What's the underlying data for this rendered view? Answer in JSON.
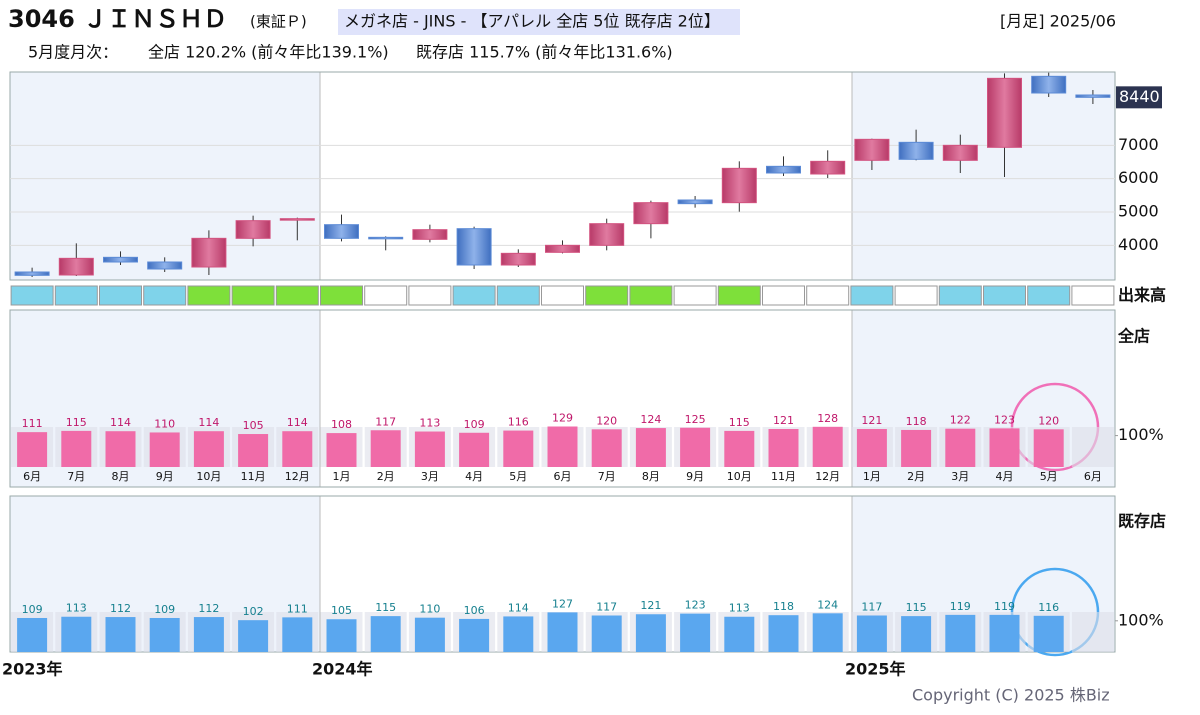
{
  "header": {
    "code_name": "3046 ＪＩＮＳＨＤ",
    "market": "(東証Ｐ)",
    "industry": "メガネ店 - JINS - 【アパレル 全店 5位 既存店 2位】",
    "period": "[月足] 2025/06",
    "summary_label": "5月度月次：",
    "all_store": "全店 120.2% (前々年比139.1%)",
    "existing_store": "既存店 115.7% (前々年比131.6%)",
    "copyright": "Copyright (C) 2025 株Biz"
  },
  "chart_data": [
    {
      "type": "candlestick",
      "open": [
        3200,
        3110,
        3640,
        3500,
        3350,
        4210,
        4770,
        4620,
        4240,
        4180,
        4500,
        3410,
        3790,
        4000,
        4650,
        5360,
        5280,
        6370,
        6140,
        6550,
        7090,
        6550,
        6940,
        9070,
        8510
      ],
      "high": [
        3330,
        4060,
        3820,
        3640,
        4450,
        4890,
        4830,
        4920,
        4270,
        4620,
        4560,
        3880,
        4150,
        4800,
        5340,
        5480,
        6520,
        6670,
        6850,
        7200,
        7470,
        7320,
        9160,
        9180,
        8660
      ],
      "low": [
        3050,
        3080,
        3410,
        3200,
        3110,
        3970,
        4150,
        4120,
        3850,
        4090,
        3290,
        3350,
        3760,
        3850,
        4210,
        5130,
        5010,
        6080,
        6020,
        6260,
        6550,
        6170,
        6050,
        8450,
        8240
      ],
      "close": [
        3100,
        3610,
        3500,
        3290,
        4210,
        4740,
        4800,
        4210,
        4210,
        4470,
        3410,
        3760,
        4000,
        4650,
        5280,
        5250,
        6310,
        6170,
        6520,
        7180,
        6580,
        7000,
        9010,
        8570,
        8440
      ],
      "up_color": "#d2527f",
      "down_color": "#5b8ad6",
      "ylim": [
        2960,
        9200
      ],
      "yticks": [
        4000,
        5000,
        6000,
        7000
      ],
      "current_price": 8440,
      "volume_label": "出来高",
      "volume_box_colors": [
        "#7fd3ea",
        "#7fd3ea",
        "#7fd3ea",
        "#7fd3ea",
        "#7ee03a",
        "#7ee03a",
        "#7ee03a",
        "#7ee03a",
        "#ffffff",
        "#ffffff",
        "#7fd3ea",
        "#7fd3ea",
        "#ffffff",
        "#7ee03a",
        "#7ee03a",
        "#ffffff",
        "#7ee03a",
        "#ffffff",
        "#ffffff",
        "#7fd3ea",
        "#ffffff",
        "#7fd3ea",
        "#7fd3ea",
        "#7fd3ea",
        "#ffffff"
      ]
    },
    {
      "type": "bar",
      "title": "全店",
      "categories": [
        "6月",
        "7月",
        "8月",
        "9月",
        "10月",
        "11月",
        "12月",
        "1月",
        "2月",
        "3月",
        "4月",
        "5月",
        "6月",
        "7月",
        "8月",
        "9月",
        "10月",
        "11月",
        "12月",
        "1月",
        "2月",
        "3月",
        "4月",
        "5月",
        "6月"
      ],
      "values": [
        111,
        115,
        114,
        110,
        114,
        105,
        114,
        108,
        117,
        113,
        109,
        116,
        129,
        120,
        124,
        125,
        115,
        121,
        128,
        121,
        118,
        122,
        123,
        120,
        null
      ],
      "color": "#f06ba8",
      "label_color": "#c0176a",
      "ylim": [
        0,
        500
      ],
      "yticks": [
        {
          "value": 100,
          "label": "100%"
        }
      ]
    },
    {
      "type": "bar",
      "title": "既存店",
      "values": [
        109,
        113,
        112,
        109,
        112,
        102,
        111,
        105,
        115,
        110,
        106,
        114,
        127,
        117,
        121,
        123,
        113,
        118,
        124,
        117,
        115,
        119,
        119,
        116,
        null
      ],
      "color": "#5aa7ef",
      "label_color": "#16808f",
      "ylim": [
        0,
        500
      ],
      "yticks": [
        {
          "value": 100,
          "label": "100%"
        }
      ],
      "year_labels": [
        "2023年",
        "2024年",
        "2025年"
      ]
    }
  ]
}
